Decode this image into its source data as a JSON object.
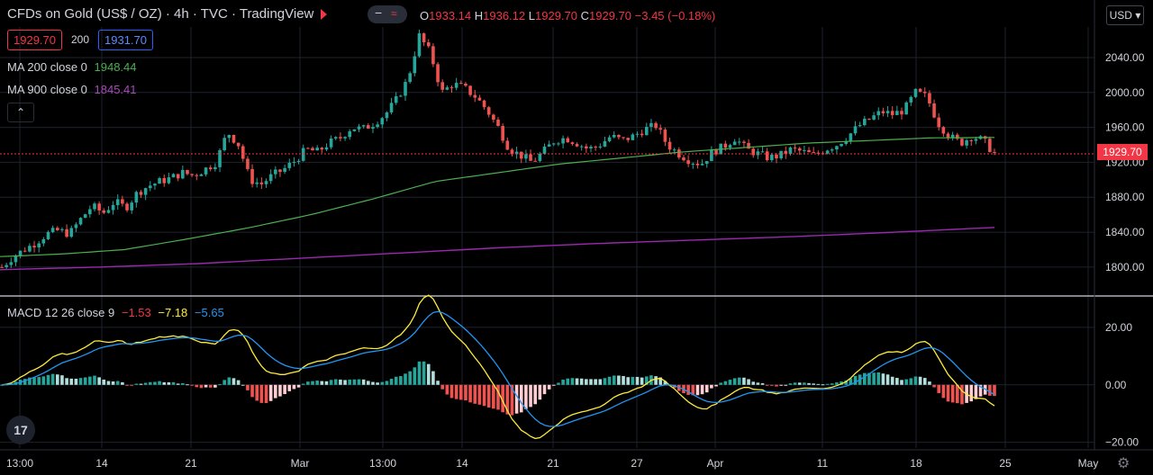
{
  "header": {
    "title": "CFDs on Gold (US$ / OZ)  ·  4h  ·  TVC  ·  TradingView",
    "ohlc": {
      "o_label": "O",
      "o": "1933.14",
      "h_label": "H",
      "h": "1936.12",
      "l_label": "L",
      "l": "1929.70",
      "c_label": "C",
      "c": "1929.70",
      "change": "−3.45 (−0.18%)"
    },
    "sell_price": "1929.70",
    "spread": "200",
    "buy_price": "1931.70",
    "pill_left_icon": "minus-icon",
    "pill_right_icon": "wave-icon",
    "pill_right_glyph": "≈",
    "collapse_glyph": "⌃"
  },
  "indicators": {
    "ma200": {
      "label": "MA 200 close 0",
      "value": "1948.44",
      "color": "#4caf50"
    },
    "ma900": {
      "label": "MA 900 close 0",
      "value": "1845.41",
      "color": "#9c27b0"
    },
    "macd": {
      "label": "MACD 12 26 close 9",
      "hist": "−1.53",
      "macd": "−7.18",
      "signal": "−5.65",
      "hist_color": "#f23645",
      "macd_color": "#ffeb3b",
      "signal_color": "#2196f3"
    }
  },
  "price_axis": {
    "ticks": [
      "2040.00",
      "2000.00",
      "1960.00",
      "1920.00",
      "1880.00",
      "1840.00",
      "1800.00"
    ],
    "currency": "USD",
    "last_price": "1929.70"
  },
  "macd_axis": {
    "ticks": [
      "20.00",
      "0.00",
      "−20.00"
    ]
  },
  "time_axis": {
    "ticks": [
      "13:00",
      "14",
      "21",
      "Mar",
      "13:00",
      "14",
      "21",
      "27",
      "Apr",
      "11",
      "18",
      "25",
      "May"
    ]
  },
  "colors": {
    "up": "#26a69a",
    "down": "#ef5350",
    "bg": "#000000",
    "grid": "#1e222d"
  },
  "chart_data": {
    "type": "candlestick",
    "title": "CFDs on Gold (US$ / OZ)",
    "timeframe": "4h",
    "ylim": [
      1770,
      2075
    ],
    "close_path": [
      1800,
      1812,
      1820,
      1828,
      1838,
      1842,
      1838,
      1855,
      1870,
      1862,
      1875,
      1868,
      1885,
      1893,
      1898,
      1902,
      1908,
      1905,
      1912,
      1920,
      1955,
      1940,
      1900,
      1895,
      1905,
      1912,
      1922,
      1935,
      1932,
      1942,
      1948,
      1960,
      1958,
      1965,
      1975,
      1992,
      2015,
      2065,
      2045,
      2000,
      2010,
      2005,
      1995,
      1980,
      1960,
      1935,
      1928,
      1920,
      1932,
      1945,
      1948,
      1942,
      1935,
      1940,
      1950,
      1945,
      1950,
      1958,
      1962,
      1940,
      1930,
      1922,
      1918,
      1932,
      1938,
      1948,
      1935,
      1930,
      1925,
      1928,
      1935,
      1932,
      1928,
      1935,
      1940,
      1950,
      1962,
      1970,
      1978,
      1975,
      1980,
      2000,
      1995,
      1965,
      1950,
      1942,
      1950,
      1945,
      1930
    ],
    "ma200_path": [
      1812,
      1815,
      1820,
      1832,
      1845,
      1860,
      1878,
      1898,
      1908,
      1918,
      1925,
      1932,
      1937,
      1942,
      1945,
      1948,
      1948.44
    ],
    "ma900_path": [
      1797,
      1800,
      1804,
      1810,
      1816,
      1822,
      1827,
      1831,
      1835,
      1840,
      1845.41
    ],
    "macd": {
      "last_hist": -1.53,
      "last_macd": -7.18,
      "last_signal": -5.65,
      "ylim": [
        -22,
        30
      ]
    }
  }
}
